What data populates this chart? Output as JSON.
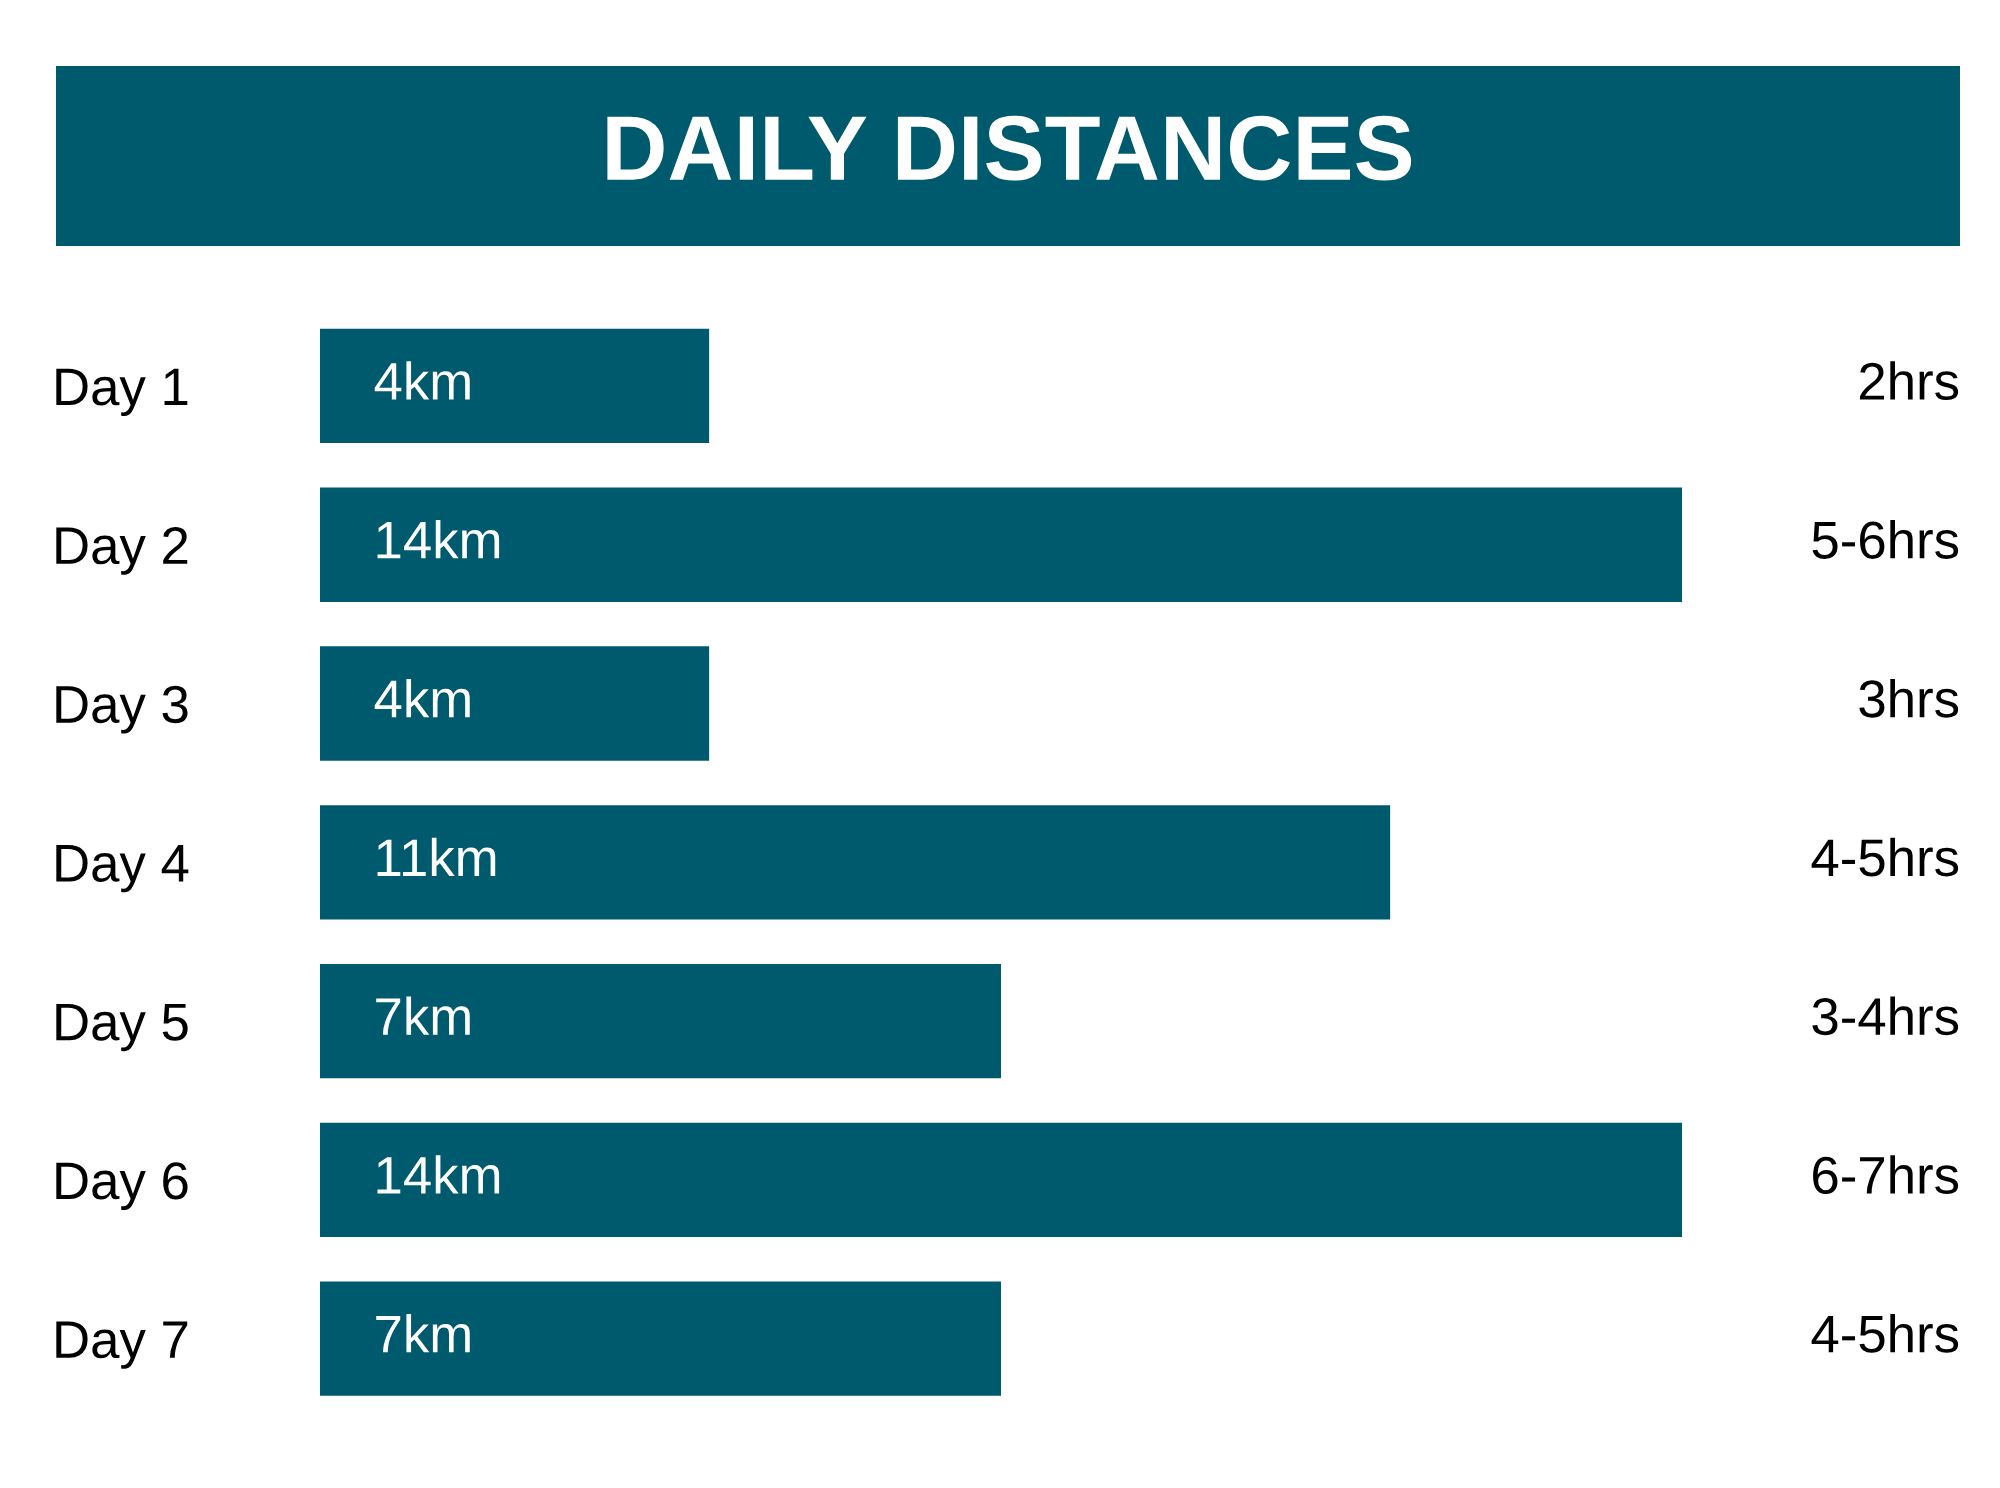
{
  "chart_data": {
    "type": "bar",
    "orientation": "horizontal",
    "title": "DAILY DISTANCES",
    "categories": [
      "Day 1",
      "Day 2",
      "Day 3",
      "Day 4",
      "Day 5",
      "Day 6",
      "Day 7"
    ],
    "values": [
      4,
      14,
      4,
      11,
      7,
      14,
      7
    ],
    "value_labels": [
      "4km",
      "14km",
      "4km",
      "11km",
      "7km",
      "14km",
      "7km"
    ],
    "color": "#005a6e",
    "xlim": [
      0,
      14
    ],
    "tick_labels": "y",
    "grid": false,
    "annotations": [
      "2hrs",
      "5-6hrs",
      "3hrs",
      "4-5hrs",
      "3-4hrs",
      "6-7hrs",
      "4-5hrs"
    ]
  }
}
